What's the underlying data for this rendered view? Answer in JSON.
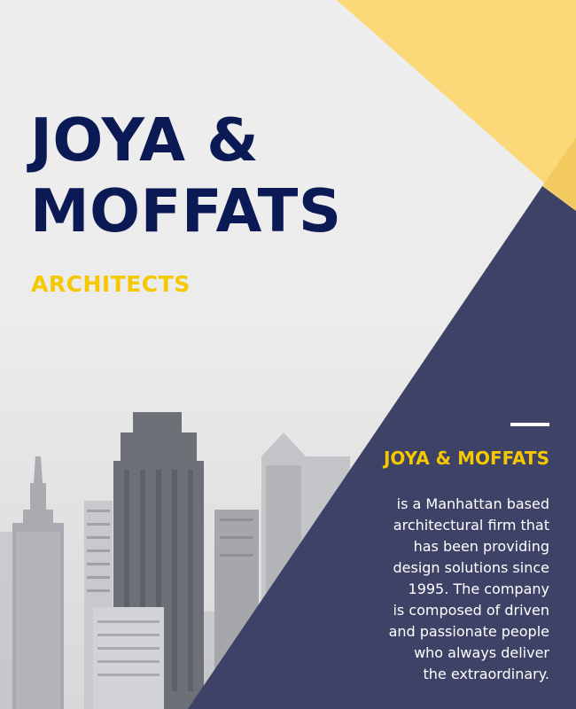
{
  "cover": {
    "title_lines": [
      "JOYA &",
      "MOFFATS"
    ],
    "subtitle": "ARCHITECTS"
  },
  "about": {
    "heading": "JOYA & MOFFATS",
    "body_lines": [
      "is a Manhattan based",
      "architectural firm that",
      "has been providing",
      "design solutions since",
      "1995. The company",
      "is composed of driven",
      "and passionate people",
      "who always deliver",
      "the extraordinary."
    ]
  },
  "colors": {
    "navy_title": "#0b1a55",
    "accent_yellow": "#f6c800",
    "panel_navy": "#3d4266",
    "corner_yellow": "#fbd878",
    "background": "#eeeeee"
  }
}
